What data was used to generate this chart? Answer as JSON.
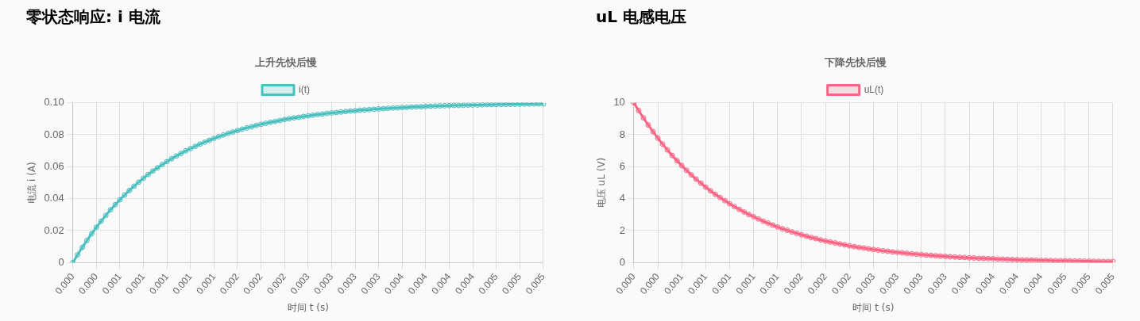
{
  "chart_data": [
    {
      "type": "line",
      "title": "零状态响应: i 电流",
      "subtitle": "上升先快后慢",
      "xlabel": "时间 t (s)",
      "ylabel": "电流 i (A)",
      "categories": [
        "0.000",
        null,
        null,
        null,
        null,
        "0.000",
        null,
        null,
        null,
        null,
        "0.001",
        null,
        null,
        null,
        null,
        "0.001",
        null,
        null,
        null,
        null,
        "0.001",
        null,
        null,
        null,
        null,
        "0.001",
        null,
        null,
        null,
        null,
        "0.001",
        null,
        null,
        null,
        null,
        "0.002",
        null,
        null,
        null,
        null,
        "0.002",
        null,
        null,
        null,
        null,
        "0.002",
        null,
        null,
        null,
        null,
        "0.003",
        null,
        null,
        null,
        null,
        "0.003",
        null,
        null,
        null,
        null,
        "0.003",
        null,
        null,
        null,
        null,
        "0.003",
        null,
        null,
        null,
        null,
        "0.004",
        null,
        null,
        null,
        null,
        "0.004",
        null,
        null,
        null,
        null,
        "0.004",
        null,
        null,
        null,
        null,
        "0.004",
        null,
        null,
        null,
        null,
        "0.005",
        null,
        null,
        null,
        null,
        "0.005",
        null,
        null,
        null,
        null,
        "0.005"
      ],
      "series": [
        {
          "name": "i(t)",
          "color": "#4bc0c0",
          "values": [
            0,
            0.0049,
            0.0095,
            0.0139,
            0.0181,
            0.0221,
            0.0259,
            0.0295,
            0.033,
            0.0362,
            0.0393,
            0.0423,
            0.0451,
            0.0478,
            0.0503,
            0.0528,
            0.0551,
            0.0573,
            0.0593,
            0.0613,
            0.0632,
            0.065,
            0.0667,
            0.0683,
            0.0699,
            0.0713,
            0.0727,
            0.0741,
            0.0753,
            0.0765,
            0.0777,
            0.0788,
            0.0798,
            0.0808,
            0.0817,
            0.0826,
            0.0835,
            0.0843,
            0.085,
            0.0858,
            0.0865,
            0.0871,
            0.0878,
            0.0883,
            0.0889,
            0.0895,
            0.09,
            0.0905,
            0.0909,
            0.0914,
            0.0918,
            0.0922,
            0.0926,
            0.0929,
            0.0933,
            0.0936,
            0.0939,
            0.0942,
            0.0945,
            0.0948,
            0.095,
            0.0953,
            0.0955,
            0.0957,
            0.0959,
            0.0961,
            0.0963,
            0.0965,
            0.0967,
            0.0968,
            0.097,
            0.0971,
            0.0973,
            0.0974,
            0.0975,
            0.0977,
            0.0978,
            0.0979,
            0.098,
            0.0981,
            0.0982,
            0.0983,
            0.0983,
            0.0984,
            0.0985,
            0.0986,
            0.0986,
            0.0987,
            0.0988,
            0.0988,
            0.0989,
            0.0989,
            0.099,
            0.099,
            0.0991,
            0.0991,
            0.0992,
            0.0992,
            0.0993,
            0.0993,
            0.0993
          ]
        }
      ],
      "ylim": [
        0,
        0.1
      ],
      "yticks": [
        0,
        0.02,
        0.04,
        0.06,
        0.08,
        {
          "value": 0.1,
          "label": "0.10"
        }
      ],
      "grid": true,
      "legend": "top",
      "marker": "circle"
    },
    {
      "type": "line",
      "title": "uL 电感电压",
      "subtitle": "下降先快后慢",
      "xlabel": "时间 t (s)",
      "ylabel": "电压 uL (V)",
      "categories": [
        "0.000",
        null,
        null,
        null,
        null,
        "0.000",
        null,
        null,
        null,
        null,
        "0.001",
        null,
        null,
        null,
        null,
        "0.001",
        null,
        null,
        null,
        null,
        "0.001",
        null,
        null,
        null,
        null,
        "0.001",
        null,
        null,
        null,
        null,
        "0.001",
        null,
        null,
        null,
        null,
        "0.002",
        null,
        null,
        null,
        null,
        "0.002",
        null,
        null,
        null,
        null,
        "0.002",
        null,
        null,
        null,
        null,
        "0.003",
        null,
        null,
        null,
        null,
        "0.003",
        null,
        null,
        null,
        null,
        "0.003",
        null,
        null,
        null,
        null,
        "0.003",
        null,
        null,
        null,
        null,
        "0.004",
        null,
        null,
        null,
        null,
        "0.004",
        null,
        null,
        null,
        null,
        "0.004",
        null,
        null,
        null,
        null,
        "0.004",
        null,
        null,
        null,
        null,
        "0.005",
        null,
        null,
        null,
        null,
        "0.005",
        null,
        null,
        null,
        null,
        "0.005"
      ],
      "series": [
        {
          "name": "uL(t)",
          "color": "#ff6384",
          "values": [
            10,
            9.51,
            9.05,
            8.61,
            8.19,
            7.79,
            7.41,
            7.05,
            6.7,
            6.38,
            6.07,
            5.77,
            5.49,
            5.22,
            4.97,
            4.72,
            4.49,
            4.27,
            4.07,
            3.87,
            3.68,
            3.5,
            3.33,
            3.17,
            3.01,
            2.87,
            2.73,
            2.59,
            2.47,
            2.35,
            2.23,
            2.12,
            2.02,
            1.92,
            1.83,
            1.74,
            1.65,
            1.57,
            1.5,
            1.42,
            1.35,
            1.29,
            1.23,
            1.17,
            1.11,
            1.05,
            1,
            0.95,
            0.91,
            0.86,
            0.82,
            0.78,
            0.74,
            0.71,
            0.67,
            0.64,
            0.61,
            0.58,
            0.55,
            0.52,
            0.5,
            0.47,
            0.45,
            0.43,
            0.41,
            0.39,
            0.37,
            0.35,
            0.33,
            0.32,
            0.3,
            0.29,
            0.27,
            0.26,
            0.25,
            0.24,
            0.22,
            0.21,
            0.2,
            0.19,
            0.18,
            0.17,
            0.17,
            0.16,
            0.15,
            0.14,
            0.14,
            0.13,
            0.12,
            0.12,
            0.11,
            0.11,
            0.1,
            0.1,
            0.09,
            0.09,
            0.08,
            0.08,
            0.07,
            0.07,
            0.07
          ]
        }
      ],
      "ylim": [
        0,
        10
      ],
      "yticks": [
        0,
        2,
        4,
        6,
        8,
        10
      ],
      "grid": true,
      "legend": "top",
      "marker": "circle"
    }
  ]
}
